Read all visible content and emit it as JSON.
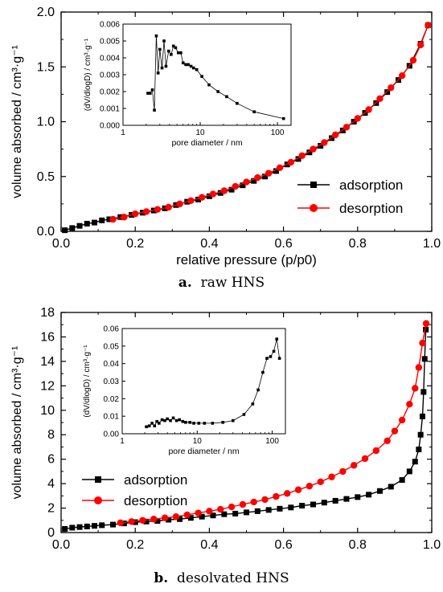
{
  "captions": {
    "a_letter": "a.",
    "a_text": "raw HNS",
    "b_letter": "b.",
    "b_text": "desolvated HNS"
  },
  "chart_data": [
    {
      "id": "a",
      "type": "line",
      "xlabel": "relative pressure (p/p0)",
      "ylabel": "volume absorbed / cm³·g⁻¹",
      "xlim": [
        0,
        1.0
      ],
      "ylim": [
        0,
        2.0
      ],
      "xticks": [
        0.0,
        0.2,
        0.4,
        0.6,
        0.8,
        1.0
      ],
      "xtick_labels": [
        "0.0",
        "0.2",
        "0.4",
        "0.6",
        "0.8",
        "1.0"
      ],
      "yticks": [
        0.0,
        0.5,
        1.0,
        1.5,
        2.0
      ],
      "ytick_labels": [
        "0.0",
        "0.5",
        "1.0",
        "1.5",
        "2.0"
      ],
      "legend_position": "right",
      "series": [
        {
          "name": "adsorption",
          "color": "#000000",
          "marker": "square",
          "x": [
            0.01,
            0.03,
            0.05,
            0.07,
            0.09,
            0.11,
            0.13,
            0.16,
            0.19,
            0.22,
            0.25,
            0.28,
            0.31,
            0.34,
            0.37,
            0.4,
            0.43,
            0.46,
            0.49,
            0.52,
            0.55,
            0.58,
            0.61,
            0.64,
            0.67,
            0.7,
            0.73,
            0.76,
            0.79,
            0.82,
            0.85,
            0.88,
            0.91,
            0.94,
            0.97,
            0.99
          ],
          "y": [
            0.01,
            0.03,
            0.05,
            0.07,
            0.08,
            0.1,
            0.11,
            0.13,
            0.15,
            0.17,
            0.19,
            0.21,
            0.24,
            0.27,
            0.29,
            0.32,
            0.35,
            0.38,
            0.42,
            0.46,
            0.5,
            0.55,
            0.61,
            0.66,
            0.72,
            0.78,
            0.85,
            0.92,
            1.0,
            1.08,
            1.17,
            1.27,
            1.38,
            1.51,
            1.71,
            1.88
          ]
        },
        {
          "name": "desorption",
          "color": "#ff0000",
          "marker": "circle",
          "x": [
            0.14,
            0.17,
            0.2,
            0.23,
            0.26,
            0.29,
            0.32,
            0.35,
            0.38,
            0.41,
            0.44,
            0.47,
            0.5,
            0.53,
            0.56,
            0.59,
            0.62,
            0.65,
            0.68,
            0.71,
            0.74,
            0.77,
            0.8,
            0.83,
            0.86,
            0.89,
            0.92,
            0.95,
            0.97,
            0.99
          ],
          "y": [
            0.11,
            0.13,
            0.16,
            0.18,
            0.2,
            0.22,
            0.25,
            0.28,
            0.31,
            0.34,
            0.37,
            0.41,
            0.45,
            0.49,
            0.53,
            0.58,
            0.63,
            0.69,
            0.75,
            0.81,
            0.88,
            0.95,
            1.03,
            1.11,
            1.21,
            1.31,
            1.42,
            1.56,
            1.7,
            1.88
          ]
        }
      ],
      "inset": {
        "type": "line",
        "xscale": "log",
        "xlim": [
          1,
          150
        ],
        "ylim": [
          0,
          0.006
        ],
        "xlabel": "pore diameter / nm",
        "ylabel": "(dV/dlogD) / cm³·g⁻¹",
        "xticks": [
          1,
          10,
          100
        ],
        "xtick_labels": [
          "1",
          "10",
          "100"
        ],
        "yticks": [
          0,
          0.001,
          0.002,
          0.003,
          0.004,
          0.005,
          0.006
        ],
        "ytick_labels": [
          "0.000",
          "0.001",
          "0.002",
          "0.003",
          "0.004",
          "0.005",
          "0.006"
        ],
        "x": [
          2.1,
          2.25,
          2.4,
          2.55,
          2.7,
          2.85,
          3.0,
          3.2,
          3.4,
          3.6,
          3.9,
          4.2,
          4.5,
          4.8,
          5.2,
          5.6,
          6.0,
          6.5,
          7.0,
          7.6,
          8.2,
          9.0,
          10.5,
          13,
          17,
          22,
          30,
          50,
          120
        ],
        "y": [
          0.0019,
          0.0019,
          0.0021,
          0.0009,
          0.0053,
          0.0031,
          0.0045,
          0.0034,
          0.005,
          0.0035,
          0.0044,
          0.0042,
          0.0047,
          0.0046,
          0.0043,
          0.0043,
          0.0037,
          0.0036,
          0.0036,
          0.0035,
          0.0034,
          0.0033,
          0.0029,
          0.0024,
          0.002,
          0.0017,
          0.0013,
          0.0008,
          0.0004
        ]
      }
    },
    {
      "id": "b",
      "type": "line",
      "xlabel": "",
      "ylabel": "volume absorbed / cm³·g⁻¹",
      "xlim": [
        0,
        1.0
      ],
      "ylim": [
        0,
        18
      ],
      "xticks": [
        0.0,
        0.2,
        0.4,
        0.6,
        0.8,
        1.0
      ],
      "xtick_labels": [
        "0.0",
        "0.2",
        "0.4",
        "0.6",
        "0.8",
        "1.0"
      ],
      "yticks": [
        0,
        2,
        4,
        6,
        8,
        10,
        12,
        14,
        16,
        18
      ],
      "ytick_labels": [
        "0",
        "2",
        "4",
        "6",
        "8",
        "10",
        "12",
        "14",
        "16",
        "18"
      ],
      "legend_position": "left",
      "series": [
        {
          "name": "adsorption",
          "color": "#000000",
          "marker": "square",
          "x": [
            0.01,
            0.03,
            0.05,
            0.07,
            0.09,
            0.11,
            0.14,
            0.17,
            0.2,
            0.23,
            0.26,
            0.29,
            0.32,
            0.35,
            0.38,
            0.41,
            0.44,
            0.47,
            0.5,
            0.53,
            0.56,
            0.59,
            0.62,
            0.65,
            0.68,
            0.71,
            0.74,
            0.77,
            0.8,
            0.83,
            0.86,
            0.89,
            0.92,
            0.94,
            0.955,
            0.965,
            0.97,
            0.975,
            0.978,
            0.981,
            0.984
          ],
          "y": [
            0.3,
            0.4,
            0.45,
            0.5,
            0.55,
            0.6,
            0.65,
            0.75,
            0.85,
            0.9,
            0.95,
            1.05,
            1.1,
            1.2,
            1.3,
            1.4,
            1.5,
            1.55,
            1.65,
            1.75,
            1.85,
            1.95,
            2.05,
            2.2,
            2.3,
            2.45,
            2.6,
            2.75,
            2.9,
            3.1,
            3.4,
            3.75,
            4.3,
            5.0,
            5.8,
            6.8,
            8.0,
            9.5,
            11.5,
            14.2,
            16.6
          ]
        },
        {
          "name": "desorption",
          "color": "#ff0000",
          "marker": "circle",
          "x": [
            0.16,
            0.19,
            0.22,
            0.25,
            0.28,
            0.31,
            0.34,
            0.37,
            0.4,
            0.43,
            0.46,
            0.49,
            0.52,
            0.55,
            0.58,
            0.61,
            0.64,
            0.67,
            0.7,
            0.73,
            0.76,
            0.79,
            0.82,
            0.85,
            0.88,
            0.9,
            0.92,
            0.94,
            0.955,
            0.965,
            0.975,
            0.985
          ],
          "y": [
            0.8,
            0.9,
            1.0,
            1.1,
            1.2,
            1.3,
            1.45,
            1.6,
            1.75,
            1.9,
            2.1,
            2.3,
            2.5,
            2.7,
            2.95,
            3.2,
            3.5,
            3.8,
            4.15,
            4.55,
            5.0,
            5.5,
            6.05,
            6.7,
            7.5,
            8.3,
            9.2,
            10.5,
            11.8,
            13.5,
            15.5,
            17.1
          ]
        }
      ],
      "inset": {
        "type": "line",
        "xscale": "log",
        "xlim": [
          1,
          150
        ],
        "ylim": [
          0,
          0.06
        ],
        "xlabel": "pore diameter / nm",
        "ylabel": "(dV/dlogD) / cm³·g⁻¹",
        "xticks": [
          1,
          10,
          100
        ],
        "xtick_labels": [
          "1",
          "10",
          "100"
        ],
        "yticks": [
          0,
          0.01,
          0.02,
          0.03,
          0.04,
          0.05,
          0.06
        ],
        "ytick_labels": [
          "0.00",
          "0.01",
          "0.02",
          "0.03",
          "0.04",
          "0.05",
          "0.06"
        ],
        "x": [
          2.1,
          2.3,
          2.5,
          2.7,
          2.9,
          3.1,
          3.4,
          3.7,
          4.0,
          4.4,
          4.8,
          5.3,
          5.8,
          6.4,
          7.0,
          8.0,
          9.0,
          10.5,
          12.5,
          16,
          22,
          30,
          42,
          55,
          65,
          75,
          85,
          95,
          105,
          115,
          125
        ],
        "y": [
          0.004,
          0.0045,
          0.006,
          0.0045,
          0.007,
          0.006,
          0.008,
          0.0075,
          0.0085,
          0.0075,
          0.009,
          0.0075,
          0.008,
          0.007,
          0.0065,
          0.0065,
          0.006,
          0.006,
          0.006,
          0.006,
          0.0065,
          0.0075,
          0.011,
          0.017,
          0.025,
          0.035,
          0.043,
          0.044,
          0.047,
          0.054,
          0.043
        ]
      }
    }
  ]
}
